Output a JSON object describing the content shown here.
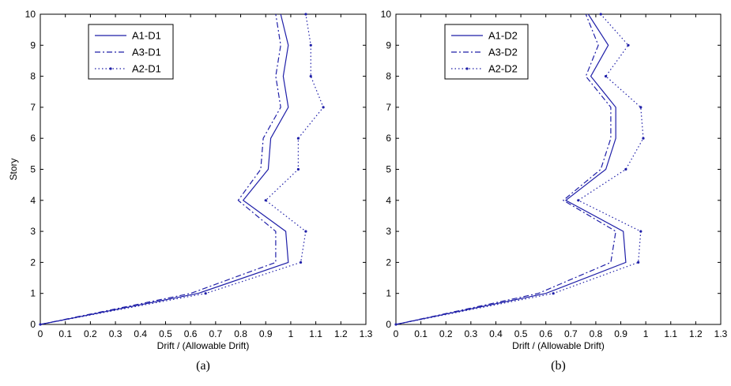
{
  "chart_data": [
    {
      "type": "line",
      "caption": "(a)",
      "xlabel": "Drift / (Allowable Drift)",
      "ylabel": "Story",
      "xlim": [
        0,
        1.3
      ],
      "ylim": [
        0,
        10
      ],
      "xticks": [
        "0",
        "0.1",
        "0.2",
        "0.3",
        "0.4",
        "0.5",
        "0.6",
        "0.7",
        "0.8",
        "0.9",
        "1",
        "1.1",
        "1.2",
        "1.3"
      ],
      "yticks": [
        "0",
        "1",
        "2",
        "3",
        "4",
        "5",
        "6",
        "7",
        "8",
        "9",
        "10"
      ],
      "legend_position": "top-left",
      "grid": false,
      "series": [
        {
          "name": "A1-D1",
          "style": "solid",
          "color": "#1f1fa8",
          "x": [
            0,
            0.63,
            0.99,
            0.98,
            0.81,
            0.91,
            0.92,
            0.99,
            0.97,
            0.99,
            0.96
          ],
          "y": [
            0,
            1,
            2,
            3,
            4,
            5,
            6,
            7,
            8,
            9,
            10
          ]
        },
        {
          "name": "A3-D1",
          "style": "dashdot",
          "color": "#1f1fa8",
          "x": [
            0,
            0.6,
            0.94,
            0.94,
            0.79,
            0.88,
            0.89,
            0.96,
            0.94,
            0.96,
            0.94
          ],
          "y": [
            0,
            1,
            2,
            3,
            4,
            5,
            6,
            7,
            8,
            9,
            10
          ]
        },
        {
          "name": "A2-D1",
          "style": "dotted",
          "color": "#1f1fa8",
          "x": [
            0,
            0.66,
            1.04,
            1.06,
            0.9,
            1.03,
            1.03,
            1.13,
            1.08,
            1.08,
            1.06
          ],
          "y": [
            0,
            1,
            2,
            3,
            4,
            5,
            6,
            7,
            8,
            9,
            10
          ]
        }
      ]
    },
    {
      "type": "line",
      "caption": "(b)",
      "xlabel": "Drift / (Allowable Drift)",
      "ylabel": "",
      "xlim": [
        0,
        1.3
      ],
      "ylim": [
        0,
        10
      ],
      "xticks": [
        "0",
        "0.1",
        "0.2",
        "0.3",
        "0.4",
        "0.5",
        "0.6",
        "0.7",
        "0.8",
        "0.9",
        "1",
        "1.1",
        "1.2",
        "1.3"
      ],
      "yticks": [
        "0",
        "1",
        "2",
        "3",
        "4",
        "5",
        "6",
        "7",
        "8",
        "9",
        "10"
      ],
      "legend_position": "top-left",
      "grid": false,
      "series": [
        {
          "name": "A1-D2",
          "style": "solid",
          "color": "#1f1fa8",
          "x": [
            0,
            0.6,
            0.92,
            0.91,
            0.68,
            0.84,
            0.88,
            0.88,
            0.78,
            0.85,
            0.77
          ],
          "y": [
            0,
            1,
            2,
            3,
            4,
            5,
            6,
            7,
            8,
            9,
            10
          ]
        },
        {
          "name": "A3-D2",
          "style": "dashdot",
          "color": "#1f1fa8",
          "x": [
            0,
            0.57,
            0.86,
            0.88,
            0.67,
            0.82,
            0.86,
            0.86,
            0.76,
            0.81,
            0.76
          ],
          "y": [
            0,
            1,
            2,
            3,
            4,
            5,
            6,
            7,
            8,
            9,
            10
          ]
        },
        {
          "name": "A2-D2",
          "style": "dotted",
          "color": "#1f1fa8",
          "x": [
            0,
            0.63,
            0.97,
            0.98,
            0.73,
            0.92,
            0.99,
            0.98,
            0.84,
            0.93,
            0.82
          ],
          "y": [
            0,
            1,
            2,
            3,
            4,
            5,
            6,
            7,
            8,
            9,
            10
          ]
        }
      ]
    }
  ]
}
